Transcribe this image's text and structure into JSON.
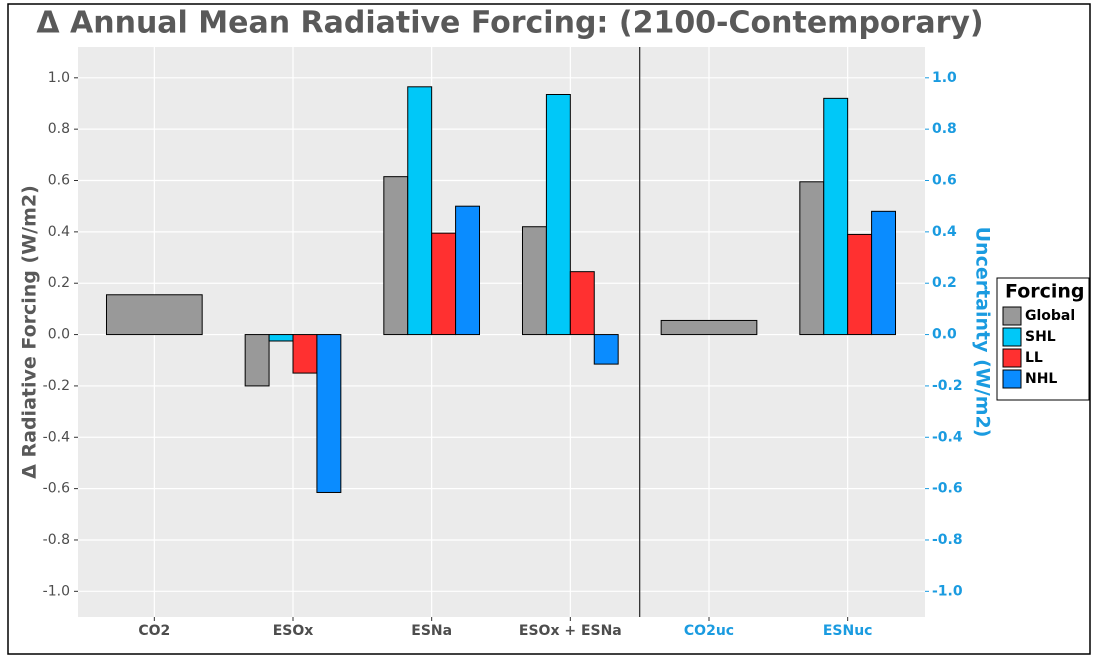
{
  "chart_data": {
    "type": "bar",
    "title": "Δ Annual Mean Radiative Forcing: (2100-Contemporary)",
    "y_label": "Δ Radiative Forcing (W/m2)",
    "y2_label": "Uncertainty (W/m2)",
    "categories": [
      "CO2",
      "ESOx",
      "ESNa",
      "ESOx + ESNa",
      "CO2uc",
      "ESNuc"
    ],
    "category_label_colors": [
      "#4d4d4d",
      "#4d4d4d",
      "#4d4d4d",
      "#4d4d4d",
      "#1a9be0",
      "#1a9be0"
    ],
    "series": [
      {
        "name": "Global",
        "color": "#999999",
        "values": [
          0.155,
          -0.2,
          0.615,
          0.42,
          0.055,
          0.595
        ]
      },
      {
        "name": "SHL",
        "color": "#00c8f8",
        "values": [
          null,
          -0.025,
          0.965,
          0.935,
          null,
          0.92
        ]
      },
      {
        "name": "LL",
        "color": "#ff3030",
        "values": [
          null,
          -0.15,
          0.395,
          0.245,
          null,
          0.39
        ]
      },
      {
        "name": "NHL",
        "color": "#0a8cff",
        "values": [
          null,
          -0.615,
          0.5,
          -0.115,
          null,
          0.48
        ]
      }
    ],
    "legend_title": "Forcing",
    "legend_position": "right",
    "ylim": [
      -1.1,
      1.12
    ],
    "yticks": [
      {
        "value": -1,
        "label": "-1.0"
      },
      -0.8,
      -0.6,
      -0.4,
      -0.2,
      {
        "value": 0,
        "label": "0.0"
      },
      0.2,
      0.4,
      0.6,
      0.8,
      {
        "value": 1,
        "label": "1.0"
      }
    ],
    "y2lim": [
      -1.1,
      1.12
    ],
    "y2ticks": [
      {
        "value": -1,
        "label": "-1.0"
      },
      -0.8,
      -0.6,
      -0.4,
      -0.2,
      {
        "value": 0,
        "label": "0.0"
      },
      0.2,
      0.4,
      0.6,
      0.8,
      {
        "value": 1,
        "label": "1.0"
      }
    ],
    "y2_color": "#1a9be0",
    "grid": true
  }
}
